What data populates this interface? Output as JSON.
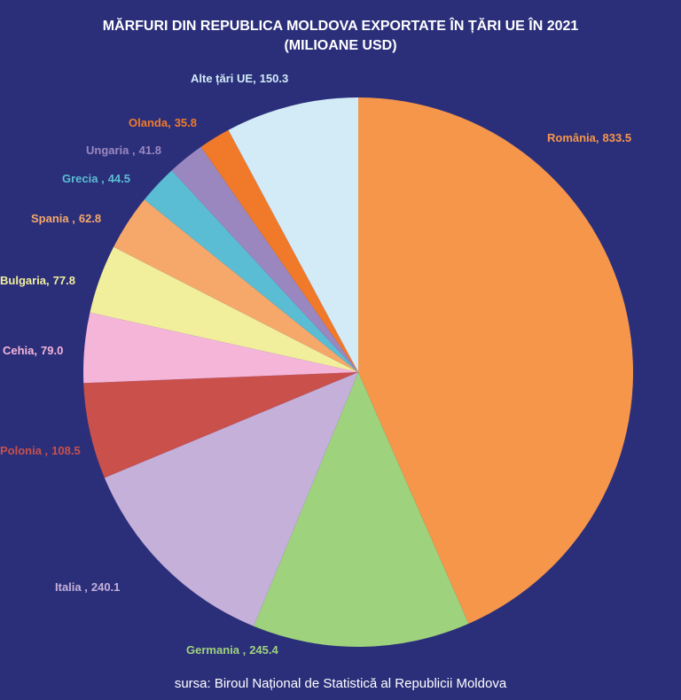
{
  "chart_data": {
    "type": "pie",
    "title": "MĂRFURI DIN REPUBLICA MOLDOVA EXPORTATE ÎN ȚĂRI UE ÎN 2021",
    "subtitle": "(MILIOANE USD)",
    "source": "sursa: Biroul Național de Statistică al Republicii Moldova",
    "categories": [
      "România,",
      "Germania ,",
      "Italia ,",
      "Polonia ,",
      "Cehia,",
      "Bulgaria,",
      "Spania ,",
      "Grecia ,",
      "Ungaria ,",
      "Olanda,",
      "Alte țări UE,"
    ],
    "values": [
      833.5,
      245.4,
      240.1,
      108.5,
      79.0,
      77.8,
      62.8,
      44.5,
      41.8,
      35.8,
      150.3
    ],
    "value_labels": [
      "833.5",
      "245.4",
      "240.1",
      "108.5",
      "79.0",
      "77.8",
      "62.8",
      "44.5",
      "41.8",
      "35.8",
      "150.3"
    ],
    "colors": [
      "#f5964a",
      "#9fd27c",
      "#c5b0da",
      "#c9504b",
      "#f5b5d9",
      "#f1ee9c",
      "#f5a86a",
      "#5bbdd3",
      "#9b87c0",
      "#f07a2a",
      "#d2ebf7"
    ]
  }
}
